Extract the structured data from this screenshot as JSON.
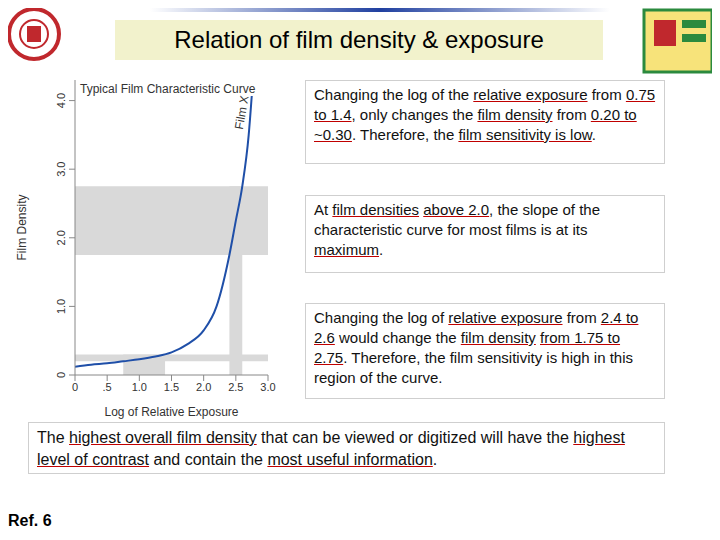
{
  "title": "Relation of film density & exposure",
  "chart_data": {
    "type": "line",
    "title": "Typical Film Characteristic Curve",
    "x_label": "Log of Relative Exposure",
    "y_label": "Film Density",
    "series": [
      {
        "name": "Film X",
        "color": "#1f4fa8",
        "x": [
          0,
          0.25,
          0.5,
          0.75,
          1.0,
          1.25,
          1.5,
          1.75,
          2.0,
          2.2,
          2.4,
          2.5,
          2.6,
          2.7,
          2.75
        ],
        "values": [
          0.12,
          0.15,
          0.17,
          0.2,
          0.23,
          0.27,
          0.33,
          0.45,
          0.65,
          1.0,
          1.75,
          2.25,
          2.75,
          3.5,
          4.1
        ]
      }
    ],
    "xlim": [
      0,
      3
    ],
    "ylim": [
      0,
      4.3
    ],
    "xticks": [
      0,
      {
        "value": 0.5,
        "label": ".5"
      },
      {
        "value": 1,
        "label": "1.0"
      },
      {
        "value": 1.5,
        "label": "1.5"
      },
      {
        "value": 2,
        "label": "2.0"
      },
      {
        "value": 2.5,
        "label": "2.5"
      },
      {
        "value": 3,
        "label": "3.0"
      }
    ],
    "yticks": [
      0,
      {
        "value": 1,
        "label": "1.0"
      },
      {
        "value": 2,
        "label": "2.0"
      },
      {
        "value": 3,
        "label": "3.0"
      },
      {
        "value": 4,
        "label": "4.0"
      }
    ],
    "highlight_regions": [
      {
        "x": [
          0.75,
          1.4
        ],
        "y": [
          0.2,
          0.3
        ]
      },
      {
        "x": [
          2.4,
          2.6
        ],
        "y": [
          1.75,
          2.75
        ]
      }
    ],
    "grid": false
  },
  "notes": [
    [
      {
        "text": "Changing the log of the ",
        "underline": false
      },
      {
        "text": "relative exposure",
        "underline": true
      },
      {
        "text": " from ",
        "underline": false
      },
      {
        "text": "0.75 to 1.4",
        "underline": true
      },
      {
        "text": ", only changes the ",
        "underline": false
      },
      {
        "text": "film density",
        "underline": true
      },
      {
        "text": " from ",
        "underline": false
      },
      {
        "text": "0.20 to ~0.30",
        "underline": true
      },
      {
        "text": ". Therefore, the ",
        "underline": false
      },
      {
        "text": "film sensitivity is low",
        "underline": true
      },
      {
        "text": ".",
        "underline": false
      }
    ],
    [
      {
        "text": "At ",
        "underline": false
      },
      {
        "text": "film densities",
        "underline": true
      },
      {
        "text": " ",
        "underline": false
      },
      {
        "text": "above 2.0",
        "underline": true
      },
      {
        "text": ", the slope of the characteristic curve for most films is at its ",
        "underline": false
      },
      {
        "text": "maximum",
        "underline": true
      },
      {
        "text": ".",
        "underline": false
      }
    ],
    [
      {
        "text": "Changing the log of ",
        "underline": false
      },
      {
        "text": "relative exposure",
        "underline": true
      },
      {
        "text": " from ",
        "underline": false
      },
      {
        "text": "2.4 to 2.6",
        "underline": true
      },
      {
        "text": " would change the ",
        "underline": false
      },
      {
        "text": "film density",
        "underline": true
      },
      {
        "text": " ",
        "underline": false
      },
      {
        "text": "from 1.75 to 2.75",
        "underline": true
      },
      {
        "text": ". Therefore, the film sensitivity is high in this region of the curve.",
        "underline": false
      }
    ]
  ],
  "summary": [
    {
      "text": "The ",
      "underline": false
    },
    {
      "text": "highest overall film density",
      "underline": true
    },
    {
      "text": " that can be viewed or digitized will have the ",
      "underline": false
    },
    {
      "text": "highest level of contrast",
      "underline": true
    },
    {
      "text": " and contain the ",
      "underline": false
    },
    {
      "text": "most useful information",
      "underline": true
    },
    {
      "text": ".",
      "underline": false
    }
  ],
  "footer": "Ref. 6"
}
